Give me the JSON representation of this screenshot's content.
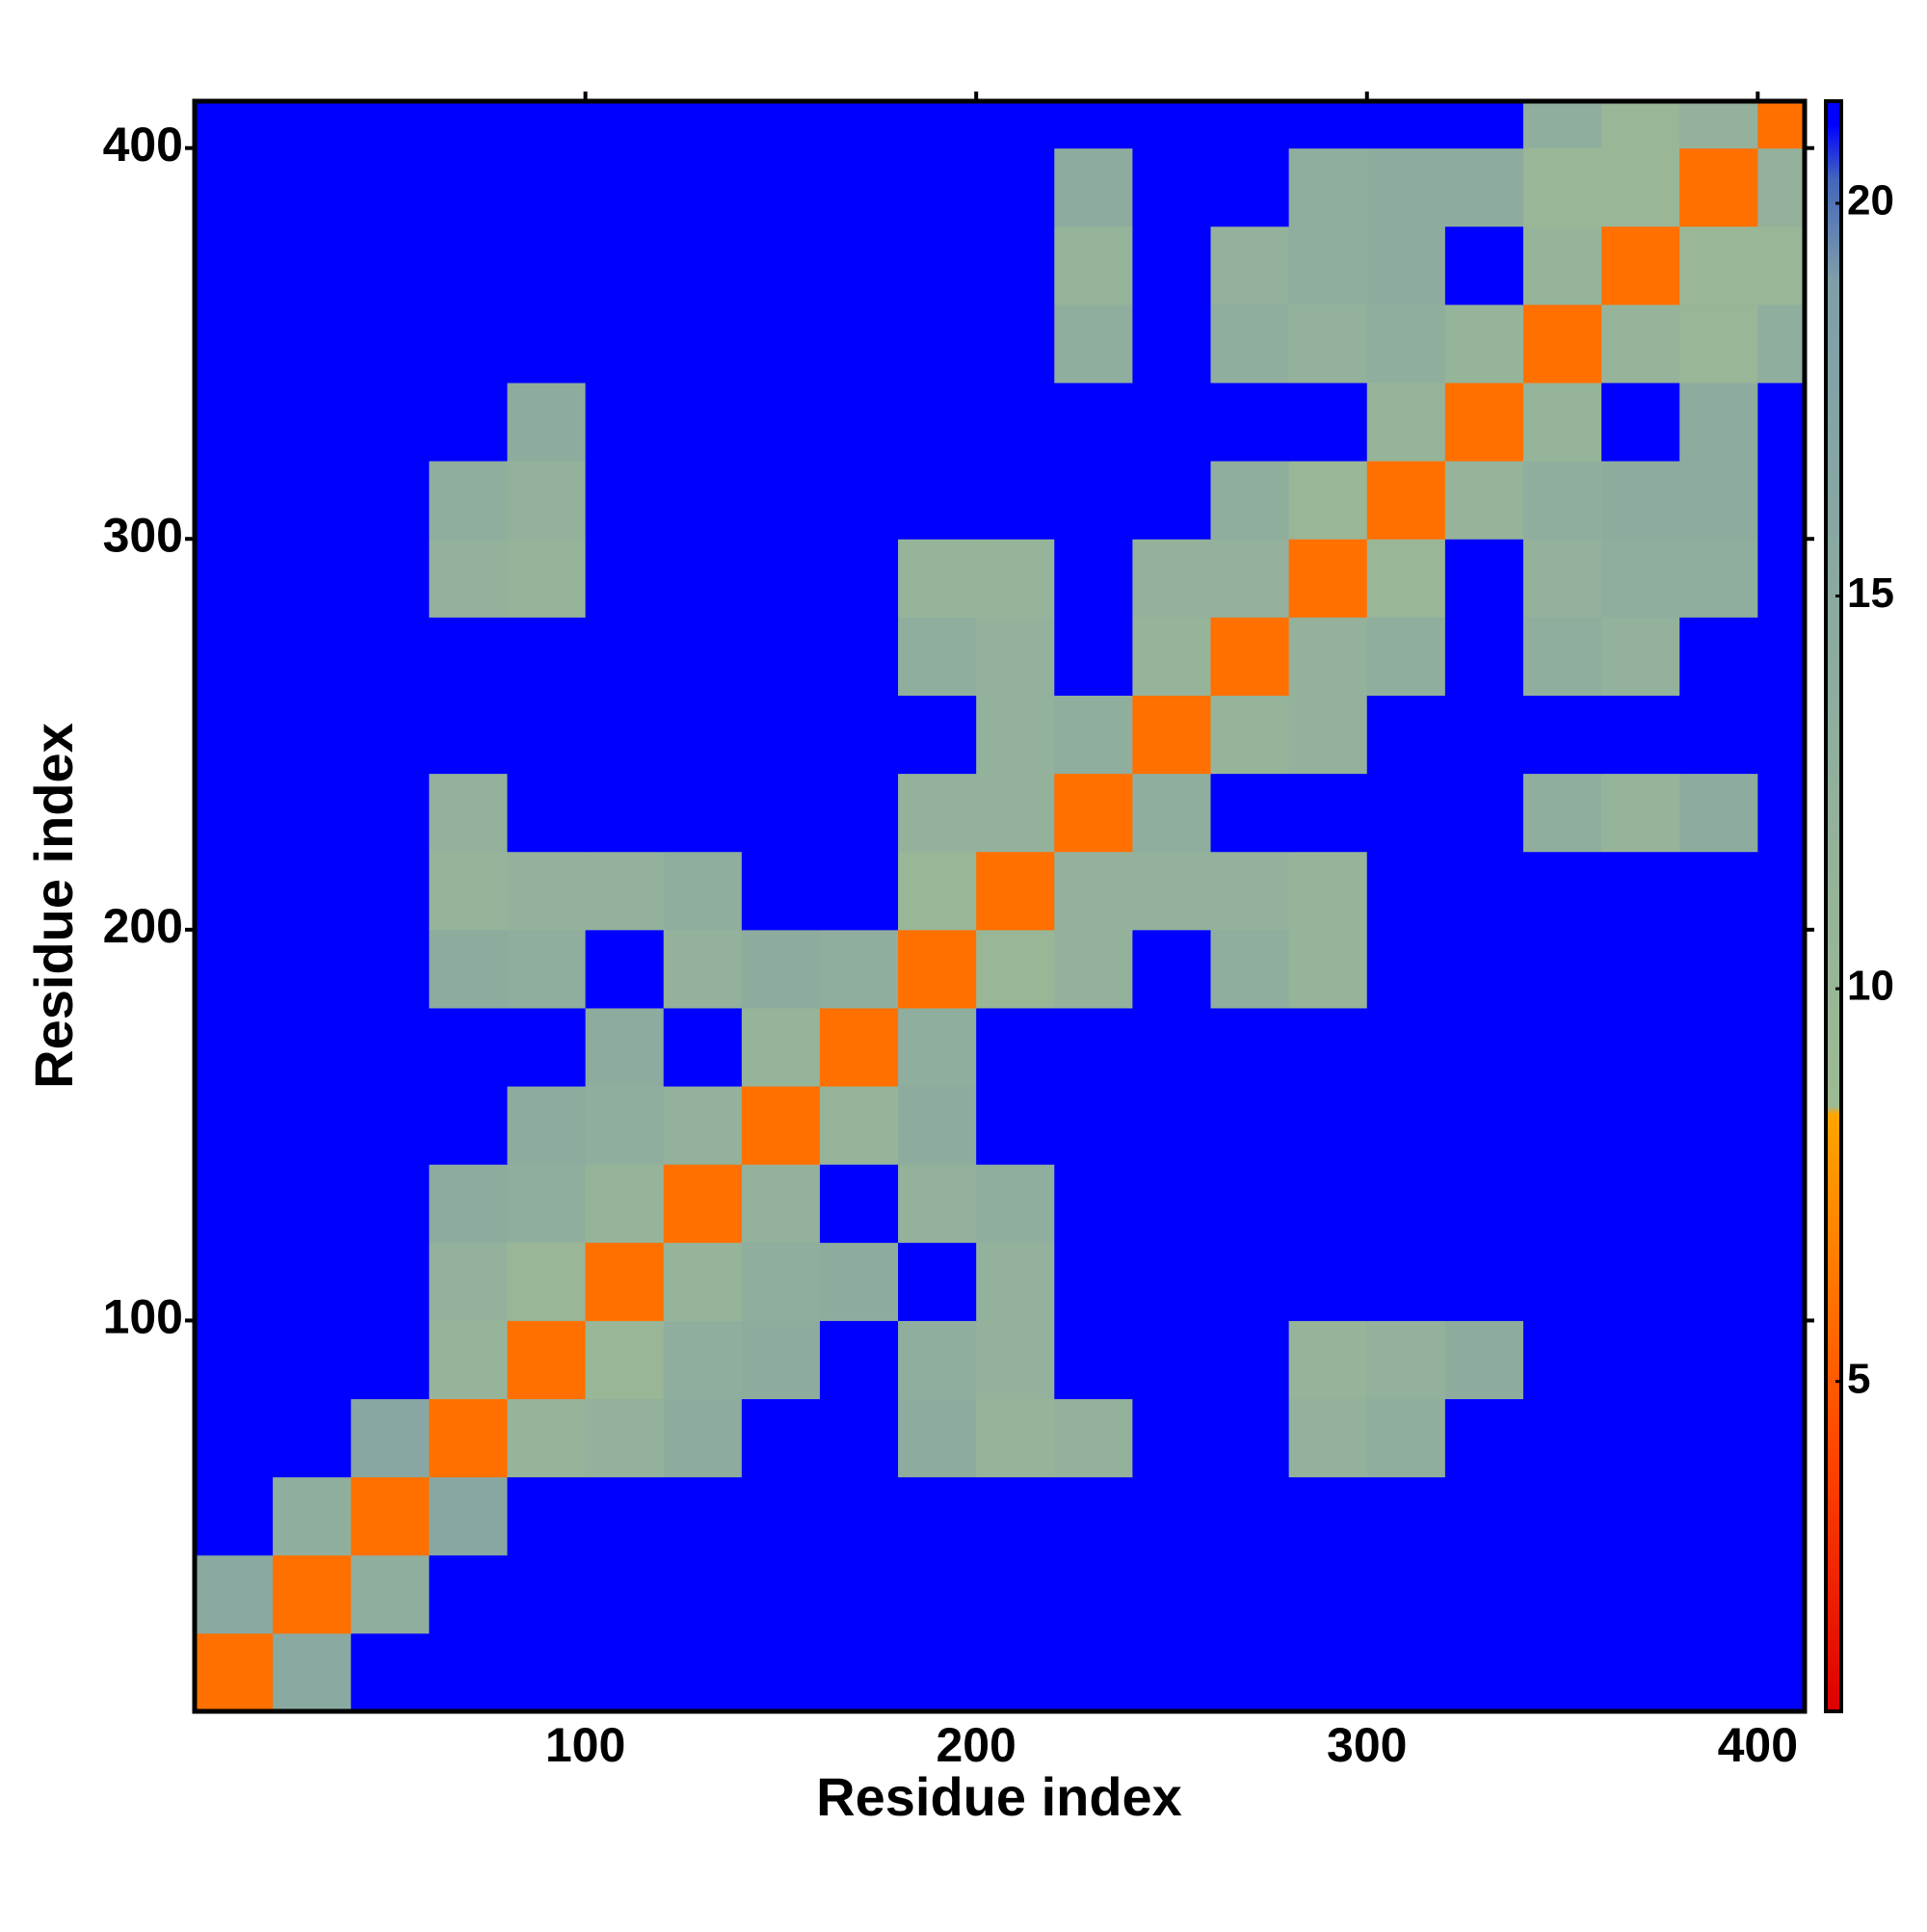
{
  "chart_data": {
    "type": "heatmap",
    "x_label": "Residue index",
    "y_label": "Residue index",
    "xlim": [
      0,
      412
    ],
    "ylim": [
      0,
      412
    ],
    "xticks": [
      100,
      200,
      300,
      400
    ],
    "yticks": [
      100,
      200,
      300,
      400
    ],
    "x_bins": [
      0,
      20,
      40,
      60,
      80,
      100,
      120,
      140,
      160,
      180,
      200,
      220,
      240,
      260,
      280,
      300,
      320,
      340,
      360,
      380,
      400,
      412
    ],
    "y_bins": [
      0,
      20,
      40,
      60,
      80,
      100,
      120,
      140,
      160,
      180,
      200,
      220,
      240,
      260,
      280,
      300,
      320,
      340,
      360,
      380,
      400,
      412
    ],
    "z": [
      [
        6,
        15,
        21,
        21,
        21,
        21,
        21,
        21,
        21,
        21,
        21,
        21,
        21,
        21,
        21,
        21,
        21,
        21,
        21,
        21,
        21
      ],
      [
        15,
        6,
        13,
        21,
        21,
        21,
        21,
        21,
        21,
        21,
        21,
        21,
        21,
        21,
        21,
        21,
        21,
        21,
        21,
        21,
        21
      ],
      [
        21,
        13,
        6,
        16,
        21,
        21,
        21,
        21,
        21,
        21,
        21,
        21,
        21,
        21,
        21,
        21,
        21,
        21,
        21,
        21,
        21
      ],
      [
        21,
        21,
        16,
        6,
        11,
        12,
        14,
        21,
        21,
        14,
        11,
        12,
        21,
        21,
        12,
        13,
        21,
        21,
        21,
        21,
        21
      ],
      [
        21,
        21,
        21,
        11,
        6,
        10,
        13,
        14,
        21,
        13,
        12,
        21,
        21,
        21,
        11,
        12,
        14,
        21,
        21,
        21,
        21
      ],
      [
        21,
        21,
        21,
        12,
        10,
        6,
        11,
        13,
        14,
        21,
        12,
        21,
        21,
        21,
        21,
        21,
        21,
        21,
        21,
        21,
        21
      ],
      [
        21,
        21,
        21,
        14,
        13,
        11,
        6,
        12,
        21,
        12,
        13,
        21,
        21,
        21,
        21,
        21,
        21,
        21,
        21,
        21,
        21
      ],
      [
        21,
        21,
        21,
        21,
        14,
        13,
        12,
        6,
        11,
        14,
        21,
        21,
        21,
        21,
        21,
        21,
        21,
        21,
        21,
        21,
        21
      ],
      [
        21,
        21,
        21,
        21,
        21,
        14,
        21,
        11,
        6,
        13,
        21,
        21,
        21,
        21,
        21,
        21,
        21,
        21,
        21,
        21,
        21
      ],
      [
        21,
        21,
        21,
        14,
        13,
        21,
        12,
        14,
        13,
        6,
        10,
        12,
        21,
        13,
        11,
        21,
        21,
        21,
        21,
        21,
        21
      ],
      [
        21,
        21,
        21,
        11,
        12,
        12,
        13,
        21,
        21,
        10,
        6,
        12,
        12,
        12,
        11,
        21,
        21,
        21,
        21,
        21,
        21
      ],
      [
        21,
        21,
        21,
        12,
        21,
        21,
        21,
        21,
        21,
        12,
        12,
        6,
        13,
        21,
        21,
        21,
        21,
        13,
        11,
        14,
        21
      ],
      [
        21,
        21,
        21,
        21,
        21,
        21,
        21,
        21,
        21,
        21,
        12,
        13,
        6,
        11,
        12,
        21,
        21,
        21,
        21,
        21,
        21
      ],
      [
        21,
        21,
        21,
        21,
        21,
        21,
        21,
        21,
        21,
        13,
        12,
        21,
        11,
        6,
        12,
        13,
        21,
        13,
        12,
        21,
        21
      ],
      [
        21,
        21,
        21,
        12,
        11,
        21,
        21,
        21,
        21,
        11,
        11,
        21,
        12,
        12,
        6,
        10,
        21,
        12,
        13,
        13,
        21
      ],
      [
        21,
        21,
        21,
        13,
        12,
        21,
        21,
        21,
        21,
        21,
        21,
        21,
        21,
        13,
        10,
        6,
        11,
        13,
        14,
        14,
        21
      ],
      [
        21,
        21,
        21,
        21,
        14,
        21,
        21,
        21,
        21,
        21,
        21,
        21,
        21,
        21,
        21,
        11,
        6,
        11,
        21,
        14,
        21
      ],
      [
        21,
        21,
        21,
        21,
        21,
        21,
        21,
        21,
        21,
        21,
        21,
        13,
        21,
        13,
        12,
        13,
        11,
        6,
        11,
        10,
        13
      ],
      [
        21,
        21,
        21,
        21,
        21,
        21,
        21,
        21,
        21,
        21,
        21,
        11,
        21,
        12,
        13,
        14,
        21,
        11,
        6,
        10,
        10
      ],
      [
        21,
        21,
        21,
        21,
        21,
        21,
        21,
        21,
        21,
        21,
        21,
        14,
        21,
        21,
        13,
        14,
        14,
        10,
        10,
        6,
        12
      ],
      [
        21,
        21,
        21,
        21,
        21,
        21,
        21,
        21,
        21,
        21,
        21,
        21,
        21,
        21,
        21,
        21,
        21,
        13,
        10,
        12,
        6
      ]
    ],
    "colorbar_lim": [
      0.8,
      21.3
    ],
    "colorbar_ticks": [
      5,
      10,
      15,
      20
    ],
    "colorscale": [
      [
        0.8,
        "#dd0000"
      ],
      [
        4,
        "#ff4400"
      ],
      [
        8.4,
        "#ffa500"
      ],
      [
        8.5,
        "#9dba94"
      ],
      [
        19,
        "#7f9fa8"
      ],
      [
        20.3,
        "#4466bb"
      ],
      [
        21,
        "#0000ff"
      ]
    ]
  }
}
